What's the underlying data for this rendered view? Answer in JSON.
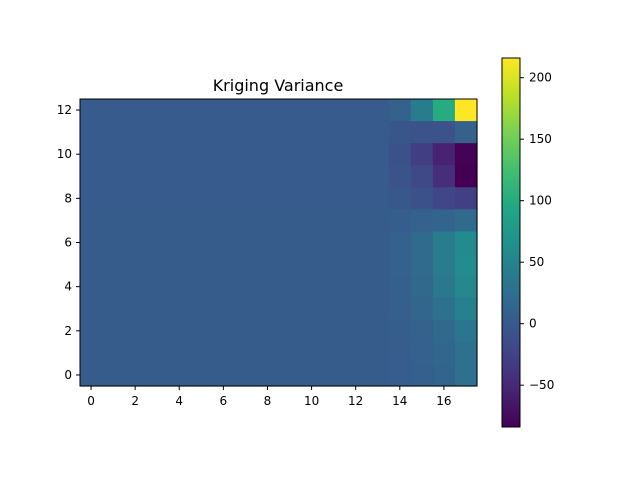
{
  "chart_data": {
    "type": "heatmap",
    "title": "Kriging Variance",
    "xlabel": "",
    "ylabel": "",
    "x_ticks": [
      "0",
      "2",
      "4",
      "6",
      "8",
      "10",
      "12",
      "14",
      "16"
    ],
    "y_ticks": [
      "0",
      "2",
      "4",
      "6",
      "8",
      "10",
      "12"
    ],
    "colorbar_ticks": [
      "−50",
      "0",
      "50",
      "100",
      "150",
      "200"
    ],
    "color_range": [
      -84,
      216
    ],
    "colormap": "viridis",
    "n_cols": 18,
    "n_rows": 13,
    "grid": false,
    "rows_top_to_bottom": [
      [
        2,
        2,
        2,
        2,
        2,
        2,
        2,
        2,
        2,
        2,
        2,
        2,
        2,
        2,
        10,
        40,
        100,
        216
      ],
      [
        2,
        2,
        2,
        2,
        2,
        2,
        2,
        2,
        2,
        2,
        2,
        2,
        2,
        2,
        -4,
        -6,
        -8,
        10
      ],
      [
        1,
        1,
        1,
        1,
        1,
        1,
        1,
        1,
        1,
        1,
        1,
        1,
        1,
        1,
        -10,
        -30,
        -55,
        -82
      ],
      [
        1,
        1,
        1,
        1,
        1,
        1,
        1,
        1,
        1,
        1,
        1,
        1,
        1,
        1,
        -6,
        -18,
        -45,
        -84
      ],
      [
        2,
        2,
        2,
        2,
        2,
        2,
        2,
        2,
        2,
        2,
        2,
        2,
        2,
        2,
        -2,
        -10,
        -22,
        -28
      ],
      [
        3,
        3,
        3,
        3,
        3,
        3,
        3,
        3,
        3,
        3,
        3,
        3,
        3,
        3,
        5,
        8,
        12,
        20
      ],
      [
        3,
        3,
        3,
        3,
        3,
        3,
        3,
        3,
        3,
        3,
        3,
        3,
        3,
        3,
        8,
        20,
        40,
        58
      ],
      [
        3,
        3,
        3,
        3,
        3,
        3,
        3,
        3,
        3,
        3,
        3,
        3,
        3,
        3,
        8,
        20,
        40,
        60
      ],
      [
        3,
        3,
        3,
        3,
        3,
        3,
        3,
        3,
        3,
        3,
        3,
        3,
        3,
        3,
        7,
        18,
        35,
        55
      ],
      [
        3,
        3,
        3,
        3,
        3,
        3,
        3,
        3,
        3,
        3,
        3,
        3,
        3,
        3,
        6,
        14,
        28,
        45
      ],
      [
        3,
        3,
        3,
        3,
        3,
        3,
        3,
        3,
        3,
        3,
        3,
        3,
        3,
        3,
        5,
        10,
        18,
        32
      ],
      [
        3,
        3,
        3,
        3,
        3,
        3,
        3,
        3,
        3,
        3,
        3,
        3,
        3,
        3,
        4,
        8,
        14,
        28
      ],
      [
        3,
        3,
        3,
        3,
        3,
        3,
        3,
        3,
        3,
        3,
        3,
        3,
        3,
        3,
        4,
        7,
        12,
        26
      ]
    ]
  }
}
